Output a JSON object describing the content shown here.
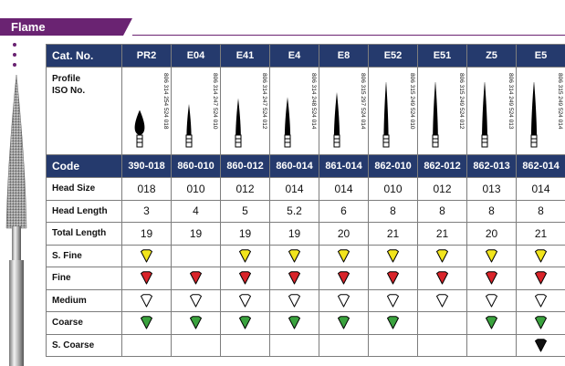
{
  "section_title": "Flame",
  "table": {
    "header_label": "Cat. No.",
    "profile_label_line1": "Profile",
    "profile_label_line2": "ISO No.",
    "code_label": "Code",
    "columns": [
      {
        "cat": "PR2",
        "iso": "806 314 254 524 018",
        "code": "390-018",
        "head_size": "018",
        "head_length": "3",
        "total_length": "19",
        "s_fine": true,
        "fine": true,
        "medium": true,
        "coarse": true,
        "s_coarse": false
      },
      {
        "cat": "E04",
        "iso": "806 314 247 524 010",
        "code": "860-010",
        "head_size": "010",
        "head_length": "4",
        "total_length": "19",
        "s_fine": false,
        "fine": true,
        "medium": true,
        "coarse": true,
        "s_coarse": false
      },
      {
        "cat": "E41",
        "iso": "806 314 247 524 012",
        "code": "860-012",
        "head_size": "012",
        "head_length": "5",
        "total_length": "19",
        "s_fine": true,
        "fine": true,
        "medium": true,
        "coarse": true,
        "s_coarse": false
      },
      {
        "cat": "E4",
        "iso": "806 314 248 524 014",
        "code": "860-014",
        "head_size": "014",
        "head_length": "5.2",
        "total_length": "19",
        "s_fine": true,
        "fine": true,
        "medium": true,
        "coarse": true,
        "s_coarse": false
      },
      {
        "cat": "E8",
        "iso": "806 315 297 524 014",
        "code": "861-014",
        "head_size": "014",
        "head_length": "6",
        "total_length": "20",
        "s_fine": true,
        "fine": true,
        "medium": true,
        "coarse": true,
        "s_coarse": false
      },
      {
        "cat": "E52",
        "iso": "806 315 249 524 010",
        "code": "862-010",
        "head_size": "010",
        "head_length": "8",
        "total_length": "21",
        "s_fine": true,
        "fine": true,
        "medium": true,
        "coarse": true,
        "s_coarse": false
      },
      {
        "cat": "E51",
        "iso": "806 315 249 524 012",
        "code": "862-012",
        "head_size": "012",
        "head_length": "8",
        "total_length": "21",
        "s_fine": true,
        "fine": true,
        "medium": true,
        "coarse": false,
        "s_coarse": false
      },
      {
        "cat": "Z5",
        "iso": "806 314 249 524 013",
        "code": "862-013",
        "head_size": "013",
        "head_length": "8",
        "total_length": "20",
        "s_fine": true,
        "fine": true,
        "medium": true,
        "coarse": true,
        "s_coarse": false
      },
      {
        "cat": "E5",
        "iso": "806 315 249 524 014",
        "code": "862-014",
        "head_size": "014",
        "head_length": "8",
        "total_length": "21",
        "s_fine": true,
        "fine": true,
        "medium": true,
        "coarse": true,
        "s_coarse": true
      }
    ],
    "rows": [
      {
        "label": "Head Size",
        "key": "head_size",
        "kind": "text"
      },
      {
        "label": "Head Length",
        "key": "head_length",
        "kind": "text"
      },
      {
        "label": "Total Length",
        "key": "total_length",
        "kind": "text"
      },
      {
        "label": "S. Fine",
        "key": "s_fine",
        "kind": "grit",
        "color": "#f2e51c"
      },
      {
        "label": "Fine",
        "key": "fine",
        "kind": "grit",
        "color": "#d9242a"
      },
      {
        "label": "Medium",
        "key": "medium",
        "kind": "grit",
        "color": "#ffffff"
      },
      {
        "label": "Coarse",
        "key": "coarse",
        "kind": "grit",
        "color": "#3aa23e"
      },
      {
        "label": "S. Coarse",
        "key": "s_coarse",
        "kind": "grit",
        "color": "#111111"
      }
    ],
    "colors": {
      "header_bg": "#253a6d",
      "banner": "#6a2372"
    }
  }
}
